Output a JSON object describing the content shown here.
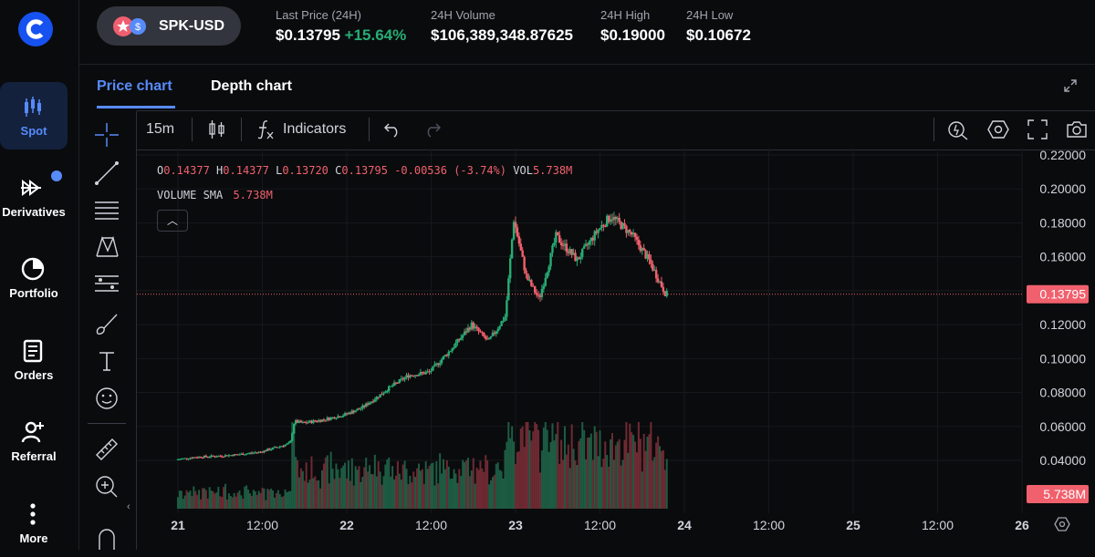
{
  "nav": {
    "items": [
      {
        "label": "Spot",
        "icon": "candles-icon",
        "active": true
      },
      {
        "label": "Derivatives",
        "icon": "arrows-icon",
        "active": false
      },
      {
        "label": "Portfolio",
        "icon": "pie-chart-icon",
        "active": false
      },
      {
        "label": "Orders",
        "icon": "document-icon",
        "active": false
      },
      {
        "label": "Referral",
        "icon": "user-plus-icon",
        "active": false
      },
      {
        "label": "More",
        "icon": "more-icon",
        "active": false
      }
    ]
  },
  "header": {
    "pair": "SPK-USD",
    "stats": [
      {
        "label": "Last Price (24H)",
        "value": "$0.13795",
        "change": "+15.64%"
      },
      {
        "label": "24H Volume",
        "value": "$106,389,348.87625"
      },
      {
        "label": "24H High",
        "value": "$0.19000"
      },
      {
        "label": "24H Low",
        "value": "$0.10672"
      }
    ]
  },
  "tabs": [
    "Price chart",
    "Depth chart"
  ],
  "toolbar": {
    "interval": "15m",
    "indicators": "Indicators"
  },
  "legend": {
    "o_label": "O",
    "o": "0.14377",
    "h_label": "H",
    "h": "0.14377",
    "l_label": "L",
    "l": "0.13720",
    "c_label": "C",
    "c": "0.13795",
    "change": "-0.00536 (-3.74%)",
    "vol_label": "VOL",
    "vol": "5.738M",
    "sma_label": "VOLUME SMA",
    "sma": "5.738M"
  },
  "colors": {
    "accent": "#578bfa",
    "up": "#27ad75",
    "down": "#f0616d",
    "bg": "#0a0b0d"
  },
  "chart_data": {
    "type": "candlestick",
    "y_ticks": [
      "0.22000",
      "0.20000",
      "0.18000",
      "0.16000",
      "0.14000",
      "0.12000",
      "0.10000",
      "0.08000",
      "0.06000",
      "0.04000"
    ],
    "x_ticks": [
      "21",
      "12:00",
      "22",
      "12:00",
      "23",
      "12:00",
      "24",
      "12:00",
      "25",
      "12:00",
      "26"
    ],
    "ylim": [
      0.02,
      0.22
    ],
    "price_label": "0.13795",
    "volume_label": "5.738M",
    "price_path": [
      [
        0,
        0.0405
      ],
      [
        0.5,
        0.042
      ],
      [
        1.0,
        0.0425
      ],
      [
        1.5,
        0.0435
      ],
      [
        2.0,
        0.045
      ],
      [
        2.7,
        0.05
      ],
      [
        2.8,
        0.063
      ],
      [
        3.0,
        0.062
      ],
      [
        3.5,
        0.064
      ],
      [
        4.0,
        0.067
      ],
      [
        4.4,
        0.071
      ],
      [
        4.8,
        0.078
      ],
      [
        5.0,
        0.082
      ],
      [
        5.5,
        0.09
      ],
      [
        6.0,
        0.092
      ],
      [
        6.5,
        0.105
      ],
      [
        7.0,
        0.12
      ],
      [
        7.4,
        0.11
      ],
      [
        7.8,
        0.125
      ],
      [
        8.0,
        0.182
      ],
      [
        8.3,
        0.148
      ],
      [
        8.6,
        0.135
      ],
      [
        9.0,
        0.172
      ],
      [
        9.5,
        0.158
      ],
      [
        10.0,
        0.176
      ],
      [
        10.3,
        0.184
      ],
      [
        10.8,
        0.173
      ],
      [
        11.2,
        0.158
      ],
      [
        11.6,
        0.138
      ]
    ]
  }
}
